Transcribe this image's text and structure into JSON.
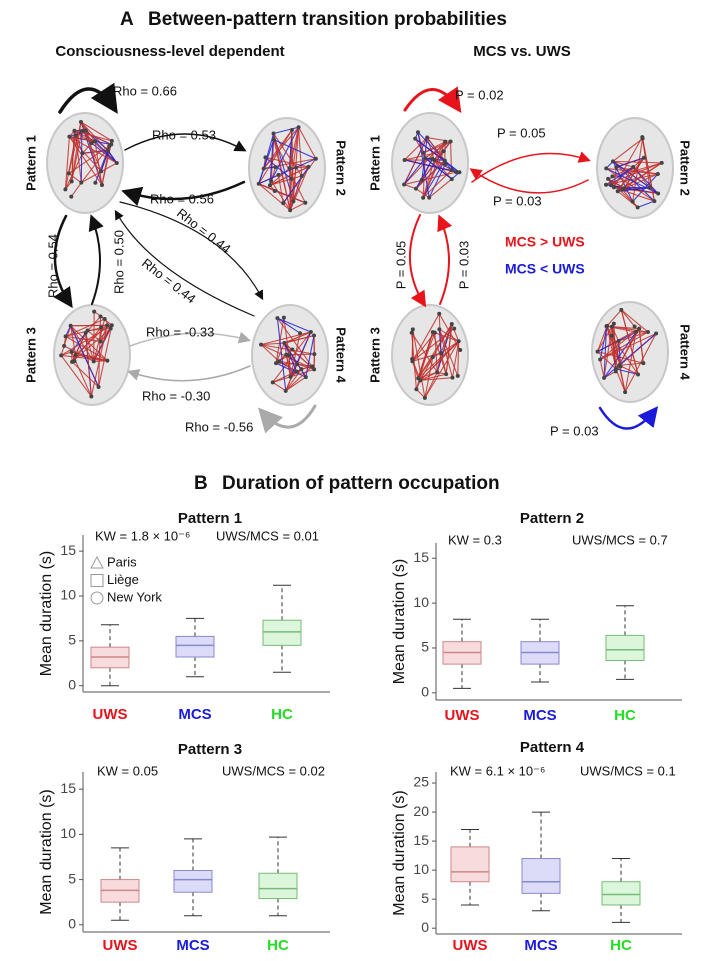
{
  "panel_a": {
    "letter": "A",
    "title": "Between-pattern transition probabilities",
    "left": {
      "title": "Consciousness-level dependent",
      "patterns": [
        "Pattern 1",
        "Pattern 2",
        "Pattern 3",
        "Pattern 4"
      ],
      "edge_labels": [
        "Rho = 0.66",
        "Rho = 0.53",
        "Rho = 0.56",
        "Rho = 0.44",
        "Rho = 0.44",
        "Rho = 0.54",
        "Rho = 0.50",
        "Rho = -0.33",
        "Rho = -0.30",
        "Rho = -0.56"
      ]
    },
    "right": {
      "title": "MCS vs. UWS",
      "patterns": [
        "Pattern 1",
        "Pattern 2",
        "Pattern 3",
        "Pattern 4"
      ],
      "edge_labels": [
        "P = 0.02",
        "P = 0.05",
        "P = 0.03",
        "P = 0.05",
        "P = 0.03",
        "P = 0.03"
      ],
      "legend": [
        "MCS > UWS",
        "MCS < UWS"
      ],
      "legend_colors": [
        "#e8141c",
        "#1a1adb"
      ]
    }
  },
  "panel_b": {
    "letter": "B",
    "title": "Duration of pattern occupation"
  },
  "chart_data": [
    {
      "type": "box",
      "title": "Pattern 1",
      "ylabel": "Mean duration (s)",
      "annotations": [
        "KW = 1.8 × 10⁻⁶",
        "UWS/MCS = 0.01"
      ],
      "categories": [
        "UWS",
        "MCS",
        "HC"
      ],
      "category_colors": [
        "#e8141c",
        "#1a1adb",
        "#22dd22"
      ],
      "box_fill": [
        "#f8dcdd",
        "#dcdcf8",
        "#dcf6dc"
      ],
      "box_edge": [
        "#cc8888",
        "#8888cc",
        "#77bb77"
      ],
      "ylim": [
        -0.7,
        16.8
      ],
      "yticks": [
        0,
        5,
        10,
        15
      ],
      "boxes": [
        {
          "whisker_low": 0,
          "q1": 2,
          "median": 3.2,
          "q3": 4.3,
          "whisker_high": 6.8
        },
        {
          "whisker_low": 1,
          "q1": 3.2,
          "median": 4.5,
          "q3": 5.5,
          "whisker_high": 7.5
        },
        {
          "whisker_low": 1.5,
          "q1": 4.5,
          "median": 6,
          "q3": 7.3,
          "whisker_high": 11.2
        }
      ],
      "marker_legend": [
        "Paris",
        "Liège",
        "New York"
      ]
    },
    {
      "type": "box",
      "title": "Pattern 2",
      "ylabel": "Mean duration (s)",
      "annotations": [
        "KW = 0.3",
        "UWS/MCS = 0.7"
      ],
      "categories": [
        "UWS",
        "MCS",
        "HC"
      ],
      "category_colors": [
        "#e8141c",
        "#1a1adb",
        "#22dd22"
      ],
      "box_fill": [
        "#f8dcdd",
        "#dcdcf8",
        "#dcf6dc"
      ],
      "box_edge": [
        "#cc8888",
        "#8888cc",
        "#77bb77"
      ],
      "ylim": [
        -0.8,
        16.7
      ],
      "yticks": [
        0,
        5,
        10,
        15
      ],
      "boxes": [
        {
          "whisker_low": 0.5,
          "q1": 3.2,
          "median": 4.5,
          "q3": 5.7,
          "whisker_high": 8.2
        },
        {
          "whisker_low": 1.2,
          "q1": 3.2,
          "median": 4.5,
          "q3": 5.7,
          "whisker_high": 8.2
        },
        {
          "whisker_low": 1.5,
          "q1": 3.6,
          "median": 4.8,
          "q3": 6.4,
          "whisker_high": 9.7
        }
      ]
    },
    {
      "type": "box",
      "title": "Pattern 3",
      "ylabel": "Mean duration (s)",
      "annotations": [
        "KW = 0.05",
        "UWS/MCS = 0.02"
      ],
      "categories": [
        "UWS",
        "MCS",
        "HC"
      ],
      "category_colors": [
        "#e8141c",
        "#1a1adb",
        "#22dd22"
      ],
      "box_fill": [
        "#f8dcdd",
        "#dcdcf8",
        "#dcf6dc"
      ],
      "box_edge": [
        "#cc8888",
        "#8888cc",
        "#77bb77"
      ],
      "ylim": [
        -0.8,
        16.9
      ],
      "yticks": [
        0,
        5,
        10,
        15
      ],
      "boxes": [
        {
          "whisker_low": 0.5,
          "q1": 2.5,
          "median": 3.8,
          "q3": 5,
          "whisker_high": 8.5
        },
        {
          "whisker_low": 1,
          "q1": 3.6,
          "median": 5,
          "q3": 6,
          "whisker_high": 9.5
        },
        {
          "whisker_low": 1,
          "q1": 2.9,
          "median": 4,
          "q3": 5.7,
          "whisker_high": 9.7
        }
      ]
    },
    {
      "type": "box",
      "title": "Pattern 4",
      "ylabel": "Mean duration (s)",
      "annotations": [
        "KW = 6.1 × 10⁻⁶",
        "UWS/MCS = 0.1"
      ],
      "categories": [
        "UWS",
        "MCS",
        "HC"
      ],
      "category_colors": [
        "#e8141c",
        "#1a1adb",
        "#22dd22"
      ],
      "box_fill": [
        "#f8dcdd",
        "#dcdcf8",
        "#dcf6dc"
      ],
      "box_edge": [
        "#cc8888",
        "#8888cc",
        "#77bb77"
      ],
      "ylim": [
        -1,
        26.9
      ],
      "yticks": [
        0,
        5,
        10,
        15,
        20,
        25
      ],
      "boxes": [
        {
          "whisker_low": 4,
          "q1": 8,
          "median": 9.7,
          "q3": 14,
          "whisker_high": 17
        },
        {
          "whisker_low": 3,
          "q1": 6,
          "median": 8,
          "q3": 12,
          "whisker_high": 20
        },
        {
          "whisker_low": 1,
          "q1": 4,
          "median": 5.8,
          "q3": 8,
          "whisker_high": 12
        }
      ]
    }
  ]
}
